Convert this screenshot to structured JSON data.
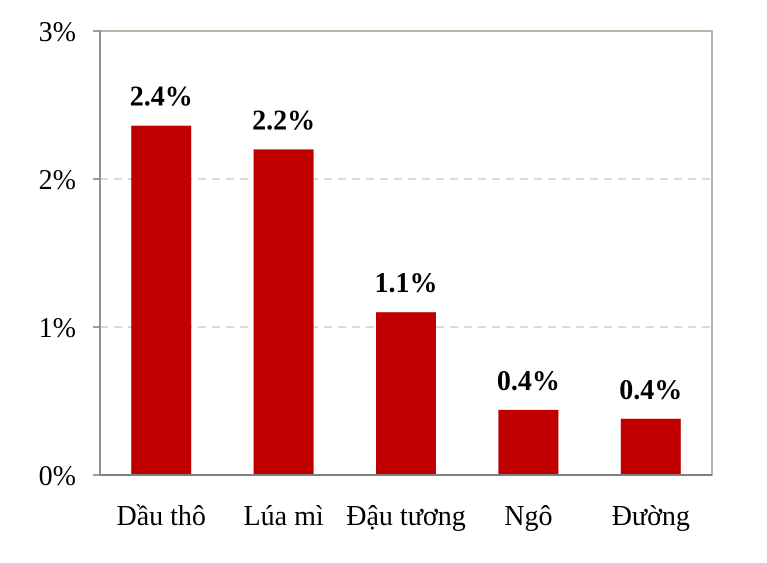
{
  "chart_data": {
    "type": "bar",
    "categories": [
      "Dầu thô",
      "Lúa mì",
      "Đậu tương",
      "Ngô",
      "Đường"
    ],
    "values": [
      2.36,
      2.2,
      1.1,
      0.44,
      0.38
    ],
    "data_labels": [
      "2.4%",
      "2.2%",
      "1.1%",
      "0.4%",
      "0.4%"
    ],
    "ylim": [
      0,
      3
    ],
    "y_ticks": [
      0,
      1,
      2,
      3
    ],
    "y_tick_labels": [
      "0%",
      "1%",
      "2%",
      "3%"
    ],
    "title": "",
    "xlabel": "",
    "ylabel": "",
    "grid": true,
    "legend": "none"
  },
  "colors": {
    "bar": "#c00000",
    "frame": "#a89a84",
    "grid": "#d9d9d9",
    "axis": "#7f7f7f"
  }
}
